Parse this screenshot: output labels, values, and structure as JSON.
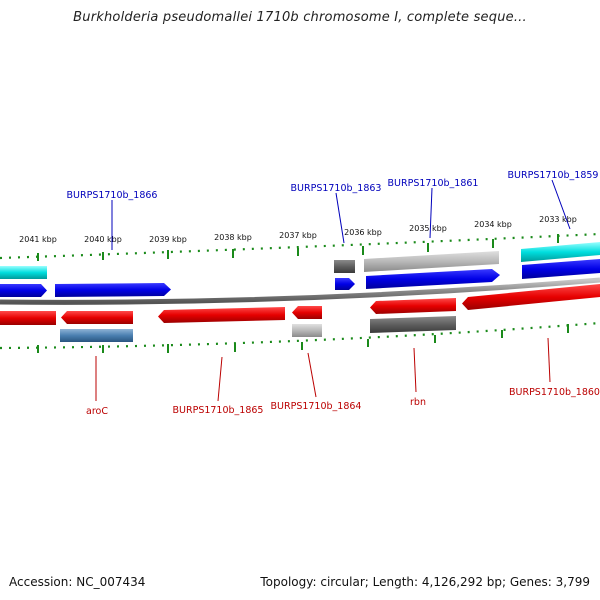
{
  "title": "Burkholderia pseudomallei 1710b chromosome I, complete seque...",
  "footer": {
    "accession": "Accession: NC_007434",
    "summary": "Topology: circular; Length: 4,126,292 bp; Genes: 3,799"
  },
  "ticks": [
    "2041 kbp",
    "2040 kbp",
    "2039 kbp",
    "2038 kbp",
    "2037 kbp",
    "2036 kbp",
    "2035 kbp",
    "2034 kbp",
    "2033 kbp"
  ],
  "labels_top": [
    "BURPS1710b_1866",
    "BURPS1710b_1863",
    "BURPS1710b_1861",
    "BURPS1710b_1859"
  ],
  "labels_bottom": [
    "aroC",
    "BURPS1710b_1865",
    "BURPS1710b_1864",
    "rbn",
    "BURPS1710b_1860"
  ],
  "colors": {
    "plus_strand": "#0000ee",
    "minus_strand": "#ee0000",
    "cyan_feature": "#00dddd",
    "grey_feature": "#999999",
    "tick": "#1a8a1a",
    "top_label": "#0000bb",
    "bottom_label": "#bb0000"
  }
}
